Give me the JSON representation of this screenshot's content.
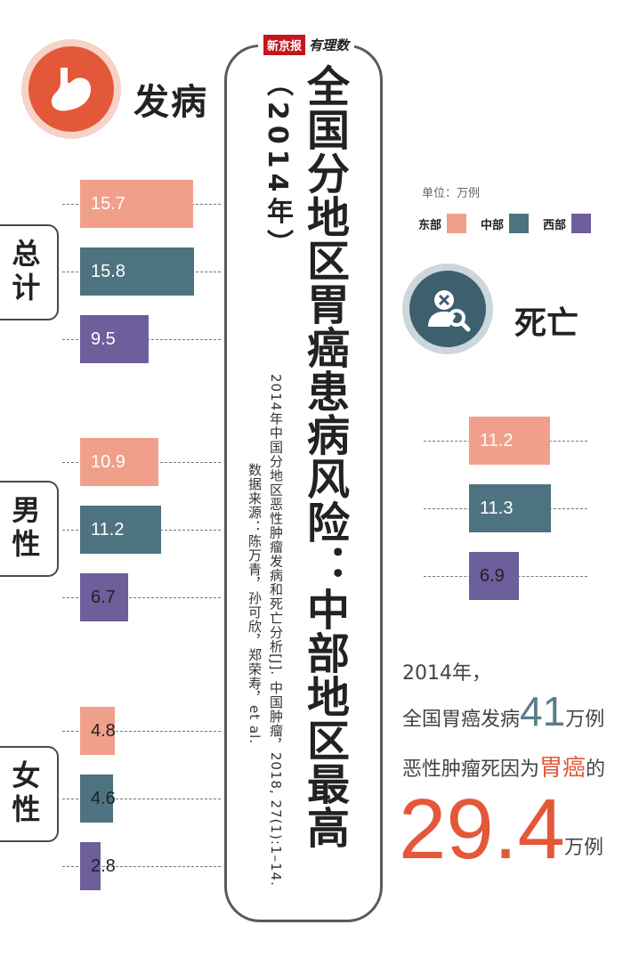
{
  "header": {
    "brand_badge": "新京报",
    "brand_script": "有理数",
    "title": "全国分地区胃癌患病风险：中部地区最高",
    "year": "（2014年）",
    "source_line1": "2014年中国分地区恶性肿瘤发病和死亡分析[J]. 中国肿瘤，2018, 27(1):1–14.",
    "source_line2": "数据来源：陈万青，孙可欣，郑荣寿，et al."
  },
  "incidence": {
    "icon": "stomach-icon",
    "title": "发病",
    "groups": [
      "总计",
      "男性",
      "女性"
    ]
  },
  "death": {
    "icon": "person-search-icon",
    "title": "死亡"
  },
  "legend": {
    "unit": "单位：万例",
    "items": [
      {
        "label": "东部",
        "color": "#f0a08a"
      },
      {
        "label": "中部",
        "color": "#4e7380"
      },
      {
        "label": "西部",
        "color": "#6d5e9c"
      }
    ]
  },
  "summary": {
    "line1": "2014年，",
    "line2_prefix": "全国胃癌发病",
    "line2_number": "41",
    "line2_suffix": "万例",
    "line3_prefix": "恶性肿瘤死因为",
    "line3_accent": "胃癌",
    "line3_suffix": "的",
    "big_number": "29.4",
    "big_unit": "万例"
  },
  "chart_data": [
    {
      "type": "bar",
      "title": "发病",
      "categories": [
        "总计",
        "男性",
        "女性"
      ],
      "series": [
        {
          "name": "东部",
          "values": [
            15.7,
            10.9,
            4.8
          ]
        },
        {
          "name": "中部",
          "values": [
            15.8,
            11.2,
            4.6
          ]
        },
        {
          "name": "西部",
          "values": [
            9.5,
            6.7,
            2.8
          ]
        }
      ],
      "unit": "万例"
    },
    {
      "type": "bar",
      "title": "死亡",
      "categories": [
        ""
      ],
      "series": [
        {
          "name": "东部",
          "values": [
            11.2
          ]
        },
        {
          "name": "中部",
          "values": [
            11.3
          ]
        },
        {
          "name": "西部",
          "values": [
            6.9
          ]
        }
      ],
      "unit": "万例"
    }
  ]
}
